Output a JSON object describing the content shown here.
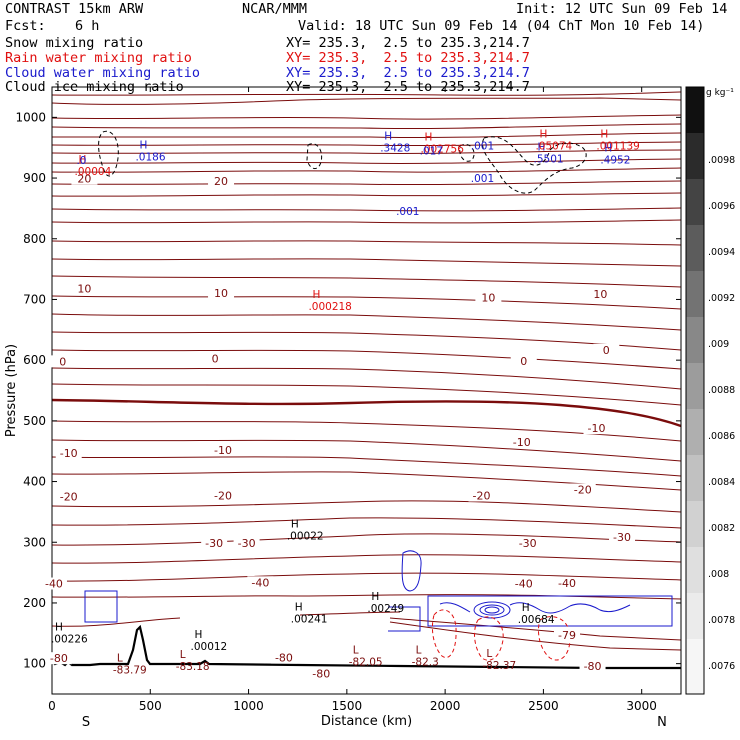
{
  "header": {
    "model": "CONTRAST 15km ARW",
    "org": "NCAR/MMM",
    "init": "Init: 12 UTC Sun 09 Feb 14",
    "fcst_label": "Fcst:",
    "fcst_value": "6 h",
    "valid": "Valid: 18 UTC Sun 09 Feb 14 (04 ChT Mon 10 Feb 14)",
    "fields": [
      {
        "name": "Snow mixing ratio",
        "xy": "XY= 235.3,  2.5 to 235.3,214.7",
        "color": "#000000"
      },
      {
        "name": "Rain water mixing ratio",
        "xy": "XY= 235.3,  2.5 to 235.3,214.7",
        "color": "#e01010"
      },
      {
        "name": "Cloud water mixing ratio",
        "xy": "XY= 235.3,  2.5 to 235.3,214.7",
        "color": "#1a1acc"
      },
      {
        "name": "Cloud ice mixing ratio",
        "xy": "XY= 235.3,  2.5 to 235.3,214.7",
        "color": "#000000"
      }
    ]
  },
  "chart_data": {
    "type": "contour",
    "xlabel": "Distance (km)",
    "ylabel": "Pressure (hPa)",
    "xlim": [
      0,
      3200
    ],
    "ylim": [
      1050,
      50
    ],
    "x_ticks": [
      0,
      500,
      1000,
      1500,
      2000,
      2500,
      3000
    ],
    "x_tick_labels": [
      "0",
      "500",
      "1000",
      "1500",
      "2000",
      "2500",
      "3000"
    ],
    "y_ticks": [
      100,
      200,
      300,
      400,
      500,
      600,
      700,
      800,
      900,
      1000
    ],
    "y_tick_labels": [
      "100",
      "200",
      "300",
      "400",
      "500",
      "600",
      "700",
      "800",
      "900",
      "1000"
    ],
    "end_labels": {
      "left": "S",
      "right": "N"
    },
    "temperature_contour_labels": [
      {
        "x": 35,
        "p": 109,
        "text": "-80"
      },
      {
        "x": 1180,
        "p": 110,
        "text": "-80"
      },
      {
        "x": 1370,
        "p": 84,
        "text": "-80"
      },
      {
        "x": 2750,
        "p": 96,
        "text": "-80"
      },
      {
        "x": 2620,
        "p": 147,
        "text": "-79"
      },
      {
        "x": 10,
        "p": 232,
        "text": "-40"
      },
      {
        "x": 1060,
        "p": 234,
        "text": "-40"
      },
      {
        "x": 2400,
        "p": 232,
        "text": "-40"
      },
      {
        "x": 2620,
        "p": 233,
        "text": "-40"
      },
      {
        "x": 825,
        "p": 299,
        "text": "-30"
      },
      {
        "x": 990,
        "p": 299,
        "text": "-30"
      },
      {
        "x": 2420,
        "p": 299,
        "text": "-30"
      },
      {
        "x": 2900,
        "p": 309,
        "text": "-30"
      },
      {
        "x": 85,
        "p": 375,
        "text": "-20"
      },
      {
        "x": 870,
        "p": 377,
        "text": "-20"
      },
      {
        "x": 2185,
        "p": 377,
        "text": "-20"
      },
      {
        "x": 2700,
        "p": 387,
        "text": "-20"
      },
      {
        "x": 85,
        "p": 447,
        "text": "-10"
      },
      {
        "x": 870,
        "p": 452,
        "text": "-10"
      },
      {
        "x": 2390,
        "p": 465,
        "text": "-10"
      },
      {
        "x": 2770,
        "p": 488,
        "text": "-10"
      },
      {
        "x": 55,
        "p": 598,
        "text": "0"
      },
      {
        "x": 830,
        "p": 603,
        "text": "0"
      },
      {
        "x": 2400,
        "p": 599,
        "text": "0"
      },
      {
        "x": 2820,
        "p": 617,
        "text": "0"
      },
      {
        "x": 165,
        "p": 718,
        "text": "10"
      },
      {
        "x": 860,
        "p": 711,
        "text": "10"
      },
      {
        "x": 2220,
        "p": 703,
        "text": "10"
      },
      {
        "x": 2790,
        "p": 709,
        "text": "10"
      },
      {
        "x": 860,
        "p": 895,
        "text": "20"
      },
      {
        "x": 165,
        "p": 899,
        "text": "20"
      }
    ],
    "extrema_labels": [
      {
        "x": 330,
        "p": 97,
        "mark": "L",
        "value": "-83.79",
        "color": "#7a0c0c"
      },
      {
        "x": 650,
        "p": 103,
        "mark": "L",
        "value": "-83.18",
        "color": "#7a0c0c"
      },
      {
        "x": 1530,
        "p": 110,
        "mark": "L",
        "value": "-82.05",
        "color": "#7a0c0c"
      },
      {
        "x": 1850,
        "p": 110,
        "mark": "L",
        "value": "-82.3",
        "color": "#7a0c0c"
      },
      {
        "x": 2210,
        "p": 104,
        "mark": "L",
        "value": "-82.37",
        "color": "#7a0c0c"
      },
      {
        "x": 15,
        "p": 148,
        "mark": "H",
        "value": ".00226",
        "color": "#000000"
      },
      {
        "x": 725,
        "p": 136,
        "mark": "H",
        "value": ".00012",
        "color": "#000000"
      },
      {
        "x": 1235,
        "p": 181,
        "mark": "H",
        "value": ".00241",
        "color": "#000000"
      },
      {
        "x": 1625,
        "p": 198,
        "mark": "H",
        "value": ".00249",
        "color": "#000000"
      },
      {
        "x": 2390,
        "p": 180,
        "mark": "H",
        "value": ".00684",
        "color": "#000000"
      },
      {
        "x": 1215,
        "p": 318,
        "mark": "H",
        "value": ".00022",
        "color": "#000000"
      },
      {
        "x": 1325,
        "p": 696,
        "mark": "H",
        "value": ".000218",
        "color": "#e01010"
      },
      {
        "x": 135,
        "p": 918,
        "mark": "H",
        "value": ".00004",
        "color": "#e01010"
      },
      {
        "x": 445,
        "p": 942,
        "mark": "H",
        "value": ".0186",
        "color": "#1a1acc"
      },
      {
        "x": 1690,
        "p": 957,
        "mark": "H",
        "value": ".3428",
        "color": "#1a1acc"
      },
      {
        "x": 1895,
        "p": 955,
        "mark": "H",
        "value": ".002756",
        "color": "#e01010"
      },
      {
        "x": 2470,
        "p": 939,
        "mark": "H",
        "value": ".5501",
        "color": "#1a1acc"
      },
      {
        "x": 2480,
        "p": 960,
        "mark": "H",
        "value": ".05074",
        "color": "#e01010"
      },
      {
        "x": 2810,
        "p": 937,
        "mark": "H",
        "value": ".4952",
        "color": "#1a1acc"
      },
      {
        "x": 2790,
        "p": 960,
        "mark": "H",
        "value": ".001139",
        "color": "#e01010"
      }
    ],
    "contour_value_labels": [
      {
        "x": 1810,
        "p": 846,
        "value": ".001",
        "color": "#1a1acc"
      },
      {
        "x": 2190,
        "p": 900,
        "value": ".001",
        "color": "#1a1acc"
      },
      {
        "x": 2190,
        "p": 954,
        "value": ".001",
        "color": "#1a1acc"
      },
      {
        "x": 1930,
        "p": 945,
        "value": ".017",
        "color": "#1a1acc"
      },
      {
        "x": 150,
        "p": 930,
        "value": ".0",
        "color": "#1a1acc"
      }
    ],
    "colorbar": {
      "unit": "g kg⁻¹",
      "labels": [
        ".0098",
        ".0096",
        ".0094",
        ".0092",
        ".009",
        ".0088",
        ".0086",
        ".0084",
        ".0082",
        ".008",
        ".0078",
        ".0076"
      ]
    },
    "colors": {
      "temperature": "#7a0c0c",
      "zero_isotherm": "#7a0c0c",
      "rain": "#e01010",
      "cloud_water": "#1a1acc",
      "snow_ice": "#000000",
      "terrain": "#000000"
    }
  }
}
